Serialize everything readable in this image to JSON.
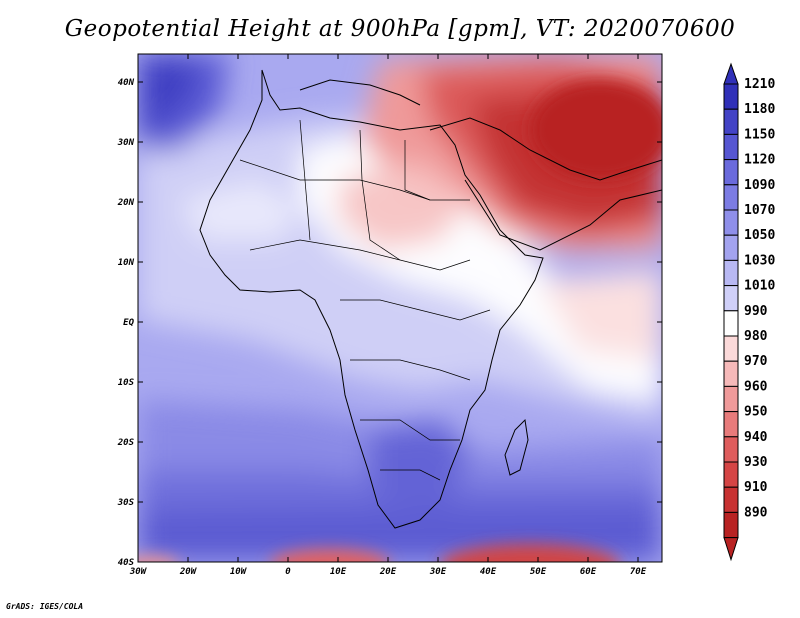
{
  "title": "Geopotential Height at 900hPa [gpm], VT: 2020070600",
  "credit": "GrADS: IGES/COLA",
  "map": {
    "lon_range": [
      -30,
      75
    ],
    "lat_range": [
      -40,
      45
    ],
    "lon_ticks": [
      "30W",
      "20W",
      "10W",
      "0",
      "10E",
      "20E",
      "30E",
      "40E",
      "50E",
      "60E",
      "70E"
    ],
    "lat_ticks": [
      "40S",
      "30S",
      "20S",
      "10S",
      "EQ",
      "10N",
      "20N",
      "30N",
      "40N"
    ]
  },
  "colorbar": {
    "levels": [
      "1210",
      "1180",
      "1150",
      "1120",
      "1090",
      "1070",
      "1050",
      "1030",
      "1010",
      "990",
      "980",
      "970",
      "960",
      "950",
      "940",
      "930",
      "910",
      "890"
    ],
    "colors": [
      "#3030b8",
      "#4343c6",
      "#5656d2",
      "#6a6adc",
      "#7c7ce4",
      "#8f8fea",
      "#a3a3ef",
      "#b8b8f3",
      "#cfcff8",
      "#ffffff",
      "#fbd9d9",
      "#f6b9b9",
      "#f09a9a",
      "#e87b7b",
      "#df5d5d",
      "#d54545",
      "#c83232",
      "#b82222"
    ]
  }
}
